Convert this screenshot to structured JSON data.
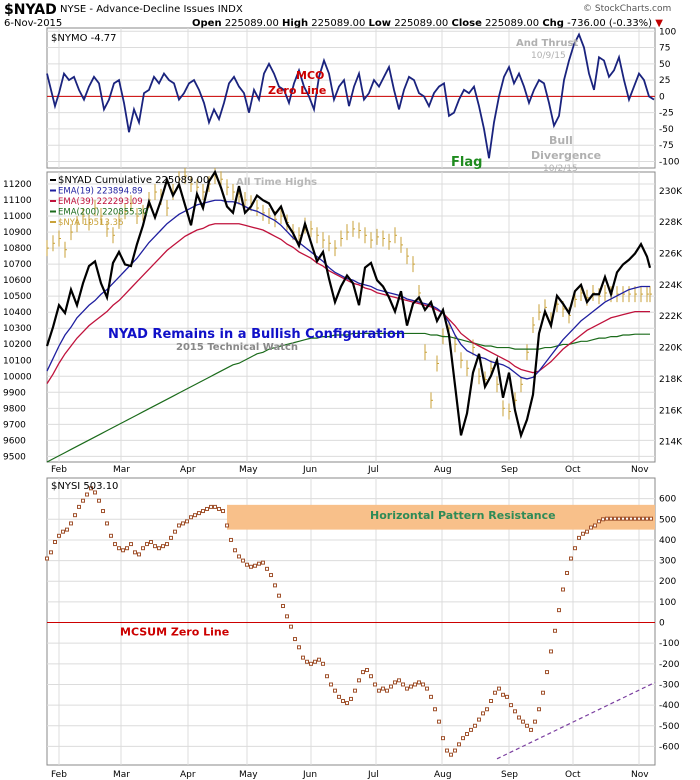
{
  "header": {
    "symbol": "$NYAD",
    "description": "NYSE - Advance-Decline Issues INDX",
    "date": "6-Nov-2015",
    "open_label": "Open",
    "open": "225089.00",
    "high_label": "High",
    "high": "225089.00",
    "low_label": "Low",
    "low": "225089.00",
    "close_label": "Close",
    "close": "225089.00",
    "chg_label": "Chg",
    "chg": "-736.00 (-0.33%)",
    "chg_marker": "▼",
    "watermark": "© StockCharts.com"
  },
  "colors": {
    "mco_line": "#1a237e",
    "zero_line": "#cc0000",
    "cumulative": "#000000",
    "ema19": "#1f1f9f",
    "ema39": "#c0123c",
    "ema200": "#1b6b1b",
    "nya": "#c9a23a",
    "nysi_dots": "#a0522d",
    "resistance_band": "#f8c08a",
    "resistance_text": "#2e8b57",
    "trend_dashed": "#7b3fa0",
    "grid": "#dcdcdc"
  },
  "chart_data": [
    {
      "type": "line",
      "panel": "top",
      "legend": "$NYMO -4.77",
      "annotations": [
        "MCO",
        "Zero Line",
        "Flag",
        "And Thrust",
        "10/9/15",
        "Bull",
        "Divergence",
        "10/2/15"
      ],
      "ylim": [
        -110,
        105
      ],
      "yticks": [
        100,
        75,
        50,
        25,
        0,
        -25,
        -50,
        -75,
        -100
      ],
      "x": [
        0,
        4,
        8,
        12,
        17,
        22,
        27,
        32,
        37,
        42,
        47,
        52,
        57,
        62,
        67,
        72,
        77,
        82,
        87,
        92,
        97,
        102,
        107,
        112,
        117,
        122,
        127,
        132,
        137,
        142,
        147,
        152,
        157,
        162,
        167,
        172,
        177,
        182,
        187,
        192,
        197,
        202,
        207,
        212,
        217,
        222,
        227,
        232,
        237,
        242,
        247,
        252,
        257,
        262,
        267,
        272,
        277,
        282,
        287,
        292,
        297,
        302,
        307,
        312,
        317,
        322,
        327,
        332,
        337,
        342,
        347,
        352,
        357,
        362,
        367,
        372,
        377,
        382,
        387,
        392,
        397,
        402,
        407,
        412,
        417,
        422,
        427,
        432,
        437,
        442,
        447,
        452,
        457,
        462,
        467,
        472,
        477,
        482,
        487,
        492,
        497,
        502,
        507,
        512,
        517,
        522,
        527,
        532,
        537,
        542,
        547,
        552,
        557,
        562,
        567,
        572,
        577,
        582,
        587,
        592,
        597,
        602,
        607
      ],
      "values": [
        35,
        10,
        -15,
        5,
        35,
        25,
        30,
        10,
        -5,
        15,
        30,
        20,
        -20,
        -5,
        20,
        25,
        -10,
        -55,
        -20,
        -40,
        5,
        10,
        30,
        20,
        35,
        25,
        20,
        -5,
        5,
        20,
        25,
        10,
        -10,
        -40,
        -20,
        -35,
        -10,
        20,
        30,
        15,
        5,
        -25,
        10,
        -5,
        35,
        50,
        35,
        15,
        10,
        -10,
        20,
        40,
        15,
        0,
        -20,
        30,
        55,
        35,
        -5,
        15,
        25,
        -15,
        15,
        35,
        -5,
        5,
        25,
        15,
        30,
        45,
        10,
        -20,
        10,
        30,
        25,
        5,
        0,
        -15,
        5,
        15,
        20,
        -30,
        -25,
        -5,
        10,
        5,
        15,
        -15,
        -50,
        -95,
        -40,
        0,
        30,
        45,
        20,
        35,
        15,
        -10,
        10,
        25,
        20,
        -10,
        -45,
        -30,
        25,
        55,
        80,
        95,
        75,
        35,
        10,
        60,
        55,
        30,
        40,
        60,
        25,
        -5,
        15,
        35,
        25,
        0,
        -5
      ]
    },
    {
      "type": "line",
      "panel": "middle",
      "legend": [
        "$NYAD Cumulative 225089.00",
        "EMA(19) 223894.89",
        "EMA(39) 222293.09",
        "EMA(200) 220855.30",
        "$NYA 10513.36"
      ],
      "annotations": [
        "All Time Highs",
        "NYAD Remains in a Bullish Configuration",
        "2015 Technical Watch"
      ],
      "left_yticks": [
        11200,
        11100,
        11000,
        10900,
        10800,
        10700,
        10600,
        10500,
        10400,
        10300,
        10200,
        10100,
        10000,
        9900,
        9800,
        9700,
        9600,
        9500
      ],
      "right_yticks": [
        "230K",
        "228K",
        "226K",
        "224K",
        "222K",
        "220K",
        "218K",
        "216K",
        "214K"
      ],
      "ylim_right": [
        212700,
        231200
      ],
      "ylim_left": [
        9465,
        11275
      ],
      "x": [
        0,
        6,
        12,
        18,
        24,
        30,
        36,
        42,
        48,
        54,
        60,
        66,
        72,
        78,
        84,
        90,
        96,
        102,
        108,
        114,
        120,
        126,
        132,
        138,
        144,
        150,
        156,
        162,
        168,
        174,
        180,
        186,
        192,
        198,
        204,
        210,
        216,
        222,
        228,
        234,
        240,
        246,
        252,
        258,
        264,
        270,
        276,
        282,
        288,
        294,
        300,
        306,
        312,
        318,
        324,
        330,
        336,
        342,
        348,
        354,
        360,
        366,
        372,
        378,
        384,
        390,
        396,
        402,
        408,
        414,
        420,
        426,
        432,
        438,
        444,
        450,
        456,
        462,
        468,
        474,
        480,
        486,
        492,
        498,
        504,
        510,
        516,
        522,
        528,
        534,
        540,
        546,
        552,
        558,
        564,
        570,
        576,
        582,
        588,
        594,
        600,
        603
      ],
      "cumulative": [
        220100,
        221300,
        222700,
        222200,
        223700,
        222700,
        224100,
        225200,
        225500,
        224100,
        223200,
        225400,
        226100,
        225300,
        225200,
        226600,
        227800,
        229300,
        228300,
        229400,
        230700,
        229700,
        230400,
        229100,
        227800,
        229800,
        228900,
        230600,
        231200,
        230200,
        229000,
        228600,
        230300,
        228600,
        229000,
        229700,
        229400,
        229200,
        228500,
        229000,
        227900,
        227300,
        226500,
        227900,
        226700,
        225500,
        226100,
        224400,
        222900,
        223900,
        224600,
        224100,
        222700,
        225100,
        225400,
        224300,
        223900,
        223200,
        222300,
        223600,
        221400,
        222800,
        223200,
        222400,
        222900,
        221700,
        222400,
        220800,
        217600,
        214400,
        215800,
        218400,
        219600,
        217500,
        218200,
        219200,
        216800,
        218400,
        216000,
        214400,
        215400,
        217000,
        220900,
        222300,
        221400,
        223300,
        222800,
        222200,
        223600,
        224000,
        222900,
        223400,
        223400,
        224500,
        223400,
        224800,
        225300,
        225600,
        226000,
        226600,
        225800,
        225089
      ],
      "ema19": [
        218500,
        219300,
        220100,
        220800,
        221300,
        221900,
        222300,
        222700,
        223000,
        223400,
        223700,
        224100,
        224500,
        224900,
        225300,
        225700,
        226200,
        226700,
        227100,
        227500,
        227900,
        228200,
        228500,
        228700,
        228900,
        229100,
        229200,
        229300,
        229400,
        229400,
        229300,
        229300,
        229200,
        229000,
        228800,
        228700,
        228500,
        228300,
        228100,
        227800,
        227400,
        227000,
        226700,
        226400,
        226100,
        225800,
        225500,
        225100,
        224800,
        224600,
        224400,
        224300,
        224100,
        224000,
        223900,
        223700,
        223600,
        223500,
        223400,
        223300,
        223100,
        223000,
        222900,
        222800,
        222700,
        222500,
        222200,
        221600,
        220800,
        220200,
        219800,
        219600,
        219400,
        219300,
        219100,
        219000,
        218900,
        218700,
        218400,
        218100,
        218000,
        218100,
        218500,
        219000,
        219500,
        220000,
        220500,
        220900,
        221300,
        221700,
        222000,
        222300,
        222600,
        222900,
        223100,
        223300,
        223500,
        223700,
        223800,
        223894,
        223894,
        223894
      ],
      "ema39": [
        217700,
        218300,
        219000,
        219600,
        220100,
        220600,
        221000,
        221400,
        221700,
        222000,
        222300,
        222700,
        223000,
        223400,
        223800,
        224200,
        224600,
        225000,
        225400,
        225800,
        226200,
        226500,
        226800,
        227100,
        227300,
        227500,
        227600,
        227800,
        227900,
        227900,
        227900,
        227900,
        227900,
        227800,
        227700,
        227600,
        227500,
        227300,
        227100,
        226900,
        226600,
        226400,
        226100,
        225900,
        225700,
        225400,
        225200,
        224900,
        224700,
        224500,
        224300,
        224100,
        224000,
        223800,
        223700,
        223500,
        223400,
        223300,
        223200,
        223100,
        223000,
        222900,
        222800,
        222700,
        222600,
        222400,
        222200,
        221800,
        221400,
        220900,
        220600,
        220300,
        220100,
        219900,
        219700,
        219500,
        219300,
        219100,
        218800,
        218600,
        218500,
        218400,
        218500,
        218800,
        219100,
        219500,
        219900,
        220200,
        220500,
        220800,
        221100,
        221300,
        221500,
        221700,
        221900,
        222000,
        222100,
        222200,
        222293,
        222293,
        222293,
        222293
      ],
      "ema200": [
        212700,
        212900,
        213100,
        213300,
        213500,
        213700,
        213900,
        214100,
        214300,
        214500,
        214700,
        214900,
        215100,
        215300,
        215500,
        215700,
        215900,
        216100,
        216300,
        216500,
        216700,
        216900,
        217100,
        217300,
        217500,
        217700,
        217900,
        218100,
        218300,
        218500,
        218700,
        218900,
        219000,
        219200,
        219400,
        219600,
        219700,
        219900,
        220000,
        220100,
        220200,
        220300,
        220400,
        220500,
        220600,
        220600,
        220700,
        220700,
        220800,
        220800,
        220800,
        220900,
        220900,
        220900,
        220900,
        220900,
        220900,
        220900,
        220900,
        220900,
        220900,
        220900,
        220900,
        220900,
        220800,
        220800,
        220700,
        220700,
        220600,
        220500,
        220400,
        220300,
        220200,
        220100,
        220100,
        220000,
        220000,
        220000,
        219900,
        219900,
        219900,
        219900,
        219900,
        220000,
        220000,
        220100,
        220200,
        220200,
        220300,
        220400,
        220400,
        220500,
        220600,
        220600,
        220700,
        220700,
        220800,
        220800,
        220855,
        220855,
        220855,
        220855
      ],
      "nya": [
        10800,
        10830,
        10860,
        10790,
        10900,
        10950,
        11000,
        10960,
        11050,
        11000,
        10920,
        10880,
        10970,
        11030,
        11080,
        11000,
        11020,
        11100,
        11150,
        11120,
        11050,
        11150,
        11230,
        11250,
        11200,
        11180,
        11150,
        11200,
        11250,
        11230,
        11180,
        11150,
        11120,
        11100,
        11080,
        11050,
        11020,
        11000,
        10980,
        11000,
        10960,
        10900,
        10880,
        10940,
        10920,
        10880,
        10850,
        10830,
        10800,
        10860,
        10900,
        10920,
        10910,
        10880,
        10850,
        10870,
        10860,
        10840,
        10880,
        10820,
        10750,
        10700,
        10520,
        10150,
        9850,
        10080,
        10250,
        10300,
        10200,
        10100,
        10050,
        10180,
        10000,
        9980,
        10050,
        9950,
        9800,
        9780,
        9850,
        9950,
        10150,
        10320,
        10400,
        10430,
        10350,
        10450,
        10420,
        10380,
        10480,
        10520,
        10490,
        10520,
        10500,
        10520,
        10513,
        10513,
        10513,
        10513,
        10513,
        10513,
        10513,
        10513
      ]
    },
    {
      "type": "scatter",
      "panel": "bottom",
      "legend": "$NYSI 503.10",
      "annotations": [
        "Horizontal Pattern Resistance",
        "MCSUM Zero Line"
      ],
      "ylim": [
        -690,
        700
      ],
      "yticks": [
        600,
        500,
        400,
        300,
        200,
        100,
        0,
        -100,
        -200,
        -300,
        -400,
        -500,
        -600
      ],
      "resistance_band": [
        450,
        570
      ],
      "trendline": {
        "x": [
          450,
          608
        ],
        "values": [
          -660,
          -290
        ]
      },
      "x": [
        0,
        4,
        8,
        12,
        16,
        20,
        24,
        28,
        32,
        36,
        40,
        44,
        48,
        52,
        56,
        60,
        64,
        68,
        72,
        76,
        80,
        84,
        88,
        92,
        96,
        100,
        104,
        108,
        112,
        116,
        120,
        124,
        128,
        132,
        136,
        140,
        144,
        148,
        152,
        156,
        160,
        164,
        168,
        172,
        176,
        180,
        184,
        188,
        192,
        196,
        200,
        204,
        208,
        212,
        216,
        220,
        224,
        228,
        232,
        236,
        240,
        244,
        248,
        252,
        256,
        260,
        264,
        268,
        272,
        276,
        280,
        284,
        288,
        292,
        296,
        300,
        304,
        308,
        312,
        316,
        320,
        324,
        328,
        332,
        336,
        340,
        344,
        348,
        352,
        356,
        360,
        364,
        368,
        372,
        376,
        380,
        384,
        388,
        392,
        396,
        400,
        404,
        408,
        412,
        416,
        420,
        424,
        428,
        432,
        436,
        440,
        444,
        448,
        452,
        456,
        460,
        464,
        468,
        472,
        476,
        480,
        484,
        488,
        492,
        496,
        500,
        504,
        508,
        512,
        516,
        520,
        524,
        528,
        532,
        536,
        540,
        544,
        548,
        552,
        556,
        560,
        564,
        568,
        572,
        576,
        580,
        584,
        588,
        592,
        596,
        600,
        604
      ],
      "values": [
        310,
        340,
        390,
        420,
        440,
        450,
        480,
        520,
        560,
        590,
        620,
        650,
        630,
        590,
        540,
        480,
        420,
        380,
        360,
        350,
        360,
        380,
        340,
        330,
        360,
        380,
        390,
        370,
        360,
        370,
        380,
        410,
        440,
        470,
        480,
        490,
        510,
        520,
        530,
        540,
        550,
        560,
        560,
        550,
        540,
        470,
        400,
        350,
        320,
        300,
        280,
        270,
        275,
        285,
        290,
        260,
        230,
        180,
        130,
        80,
        30,
        -20,
        -80,
        -120,
        -170,
        -190,
        -200,
        -190,
        -180,
        -200,
        -260,
        -300,
        -330,
        -360,
        -380,
        -390,
        -370,
        -330,
        -280,
        -240,
        -230,
        -260,
        -300,
        -330,
        -320,
        -330,
        -310,
        -290,
        -280,
        -300,
        -320,
        -310,
        -300,
        -290,
        -300,
        -320,
        -360,
        -420,
        -480,
        -560,
        -620,
        -640,
        -620,
        -590,
        -560,
        -540,
        -520,
        -500,
        -470,
        -440,
        -420,
        -380,
        -340,
        -320,
        -350,
        -360,
        -400,
        -430,
        -460,
        -480,
        -500,
        -520,
        -480,
        -420,
        -340,
        -240,
        -140,
        -40,
        60,
        160,
        240,
        310,
        360,
        410,
        430,
        440,
        460,
        470,
        490,
        500,
        503,
        503,
        503,
        503,
        503,
        503,
        503,
        503,
        503,
        503,
        503,
        503
      ],
      "values_note_free": true
    }
  ],
  "x_axis": {
    "months": [
      "Feb",
      "Mar",
      "Apr",
      "May",
      "Jun",
      "Jul",
      "Aug",
      "Sep",
      "Oct",
      "Nov"
    ],
    "month_x": [
      0,
      62,
      129,
      188,
      252,
      317,
      383,
      450,
      514,
      580
    ]
  }
}
